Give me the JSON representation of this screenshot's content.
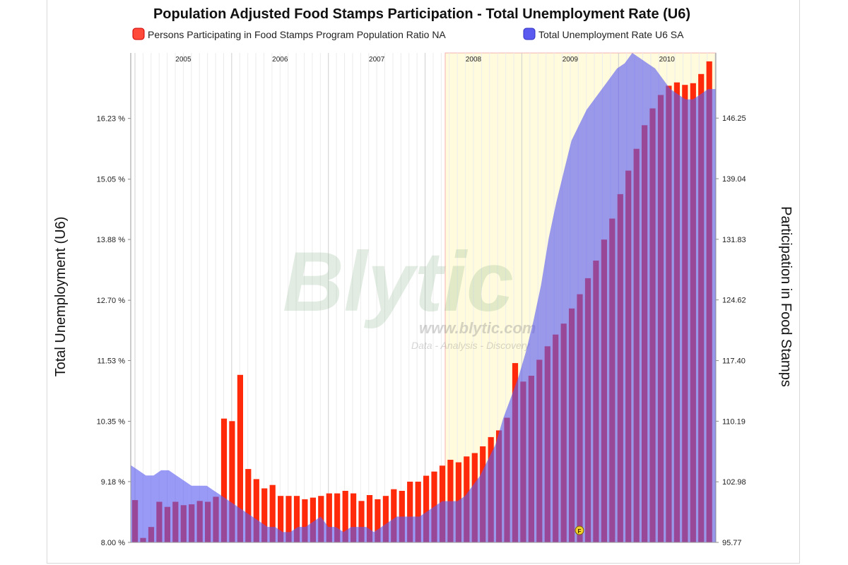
{
  "chart_data": {
    "type": "bar+area",
    "title": "Population Adjusted Food Stamps Participation - Total Unemployment Rate (U6)",
    "ylabel_left": "Total Unemployment (U6)",
    "ylabel_right": "Participation in Food Stamps",
    "left_ticks": [
      "16.23 %",
      "15.05 %",
      "13.88 %",
      "12.70 %",
      "11.53 %",
      "10.35 %",
      "9.18 %",
      "8.00 %"
    ],
    "right_ticks": [
      "146.25",
      "139.04",
      "131.83",
      "124.62",
      "117.40",
      "110.19",
      "102.98",
      "95.77"
    ],
    "left_range": [
      8.0,
      17.5
    ],
    "right_range": [
      95.77,
      154.0
    ],
    "years": [
      "2005",
      "2006",
      "2007",
      "2008",
      "2009",
      "2010"
    ],
    "recession_label": "",
    "series": [
      {
        "name": "Persons Participating in Food Stamps Program Population Ratio NA",
        "type": "bar",
        "color": "#ff2a0a",
        "values": [
          100.8,
          96.3,
          97.6,
          100.6,
          100.0,
          100.6,
          100.2,
          100.3,
          100.7,
          100.6,
          101.2,
          110.5,
          110.2,
          115.7,
          104.5,
          103.3,
          102.2,
          102.6,
          101.3,
          101.3,
          101.3,
          100.9,
          101.1,
          101.3,
          101.6,
          101.6,
          101.9,
          101.6,
          100.7,
          101.4,
          100.9,
          101.3,
          102.1,
          101.9,
          103.0,
          103.0,
          103.7,
          104.2,
          104.9,
          105.6,
          105.3,
          106.0,
          106.4,
          107.2,
          108.3,
          109.1,
          110.6,
          117.1,
          114.9,
          115.6,
          117.5,
          119.1,
          120.5,
          121.8,
          123.6,
          125.3,
          127.2,
          129.3,
          131.8,
          134.3,
          137.2,
          140.0,
          142.6,
          145.4,
          147.4,
          149.0,
          150.1,
          150.5,
          150.2,
          150.4,
          151.5,
          153.0
        ]
      },
      {
        "name": "Total Unemployment Rate U6 SA",
        "type": "area",
        "color": "#5a5af0",
        "values": [
          9.5,
          9.4,
          9.3,
          9.3,
          9.4,
          9.4,
          9.3,
          9.2,
          9.1,
          9.1,
          9.1,
          9.0,
          8.9,
          8.8,
          8.7,
          8.6,
          8.5,
          8.4,
          8.3,
          8.3,
          8.2,
          8.2,
          8.3,
          8.3,
          8.4,
          8.5,
          8.3,
          8.3,
          8.2,
          8.3,
          8.3,
          8.3,
          8.2,
          8.3,
          8.4,
          8.5,
          8.5,
          8.5,
          8.5,
          8.6,
          8.7,
          8.8,
          8.8,
          8.8,
          8.9,
          9.1,
          9.3,
          9.6,
          9.9,
          10.4,
          10.8,
          11.2,
          11.7,
          12.3,
          13.0,
          13.9,
          14.6,
          15.2,
          15.8,
          16.1,
          16.4,
          16.6,
          16.8,
          17.0,
          17.2,
          17.3,
          17.5,
          17.4,
          17.3,
          17.2,
          17.0,
          16.8,
          16.7,
          16.6,
          16.6,
          16.7,
          16.8,
          16.8
        ]
      }
    ]
  },
  "legend": {
    "item1": "Persons Participating in Food Stamps Program Population Ratio NA",
    "item2": "Total Unemployment Rate U6 SA"
  },
  "watermark": {
    "brand": "Blytic",
    "url": "www.blytic.com",
    "tagline": "Data - Analysis - Discovery"
  },
  "colors": {
    "bar": "#ff2a0a",
    "area": "#5a5af0",
    "recession": "#fffbdc"
  }
}
